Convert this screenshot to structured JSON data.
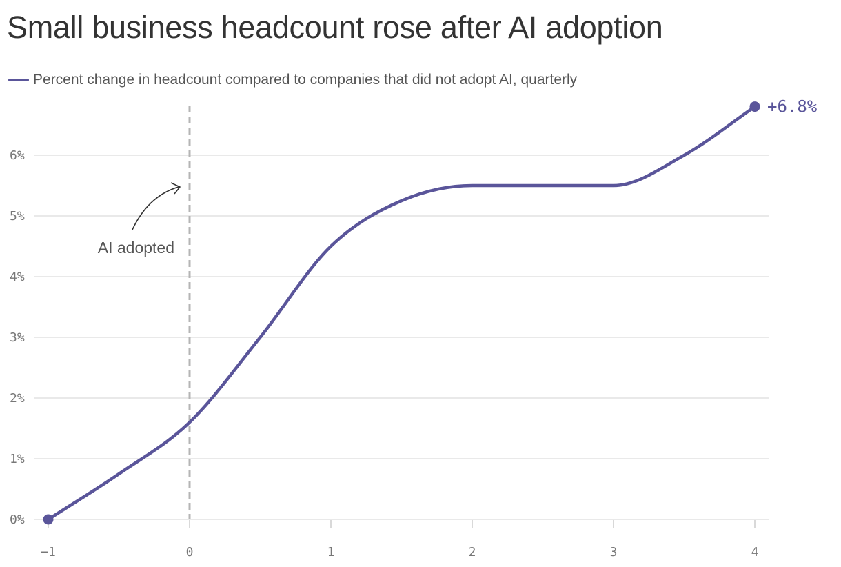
{
  "title": "Small business headcount rose after AI adoption",
  "legend": {
    "label": "Percent change in headcount compared to companies that did not adopt AI, quarterly"
  },
  "colors": {
    "series": "#5a559a",
    "grid": "#e2e2e2",
    "marker": "#b5b5b5",
    "axis_text": "#777777"
  },
  "chart_data": {
    "type": "line",
    "series": [
      {
        "name": "Percent change in headcount compared to companies that did not adopt AI, quarterly",
        "x": [
          -1,
          -0.5,
          0,
          0.5,
          1,
          1.5,
          2,
          2.5,
          3,
          3.5,
          4
        ],
        "y": [
          0,
          0.75,
          1.6,
          3.0,
          4.5,
          5.25,
          5.5,
          5.5,
          5.5,
          6.0,
          6.8
        ]
      }
    ],
    "xlim": [
      -1,
      4
    ],
    "ylim": [
      0,
      7
    ],
    "x_ticks": [
      -1,
      0,
      1,
      2,
      3,
      4
    ],
    "x_tick_labels": [
      "−1",
      "0",
      "1",
      "2",
      "3",
      "4"
    ],
    "y_ticks": [
      0,
      1,
      2,
      3,
      4,
      5,
      6
    ],
    "y_tick_labels": [
      "0%",
      "1%",
      "2%",
      "3%",
      "4%",
      "5%",
      "6%"
    ],
    "grid": true,
    "end_label": "+6.8%",
    "annotation": {
      "text": "AI adopted",
      "x": 0
    }
  }
}
